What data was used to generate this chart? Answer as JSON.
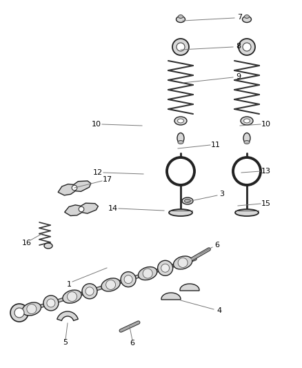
{
  "bg_color": "#ffffff",
  "fig_width": 4.38,
  "fig_height": 5.33,
  "dpi": 100,
  "line_color": "#777777",
  "label_color": "#000000",
  "label_fontsize": 8,
  "callouts": [
    [
      "1",
      155,
      388,
      105,
      408,
      100,
      412
    ],
    [
      "3",
      272,
      292,
      315,
      283,
      322,
      281
    ],
    [
      "4",
      262,
      435,
      310,
      448,
      318,
      450
    ],
    [
      "5",
      98,
      468,
      95,
      492,
      95,
      496
    ],
    [
      "6",
      188,
      473,
      192,
      493,
      192,
      497
    ],
    [
      "6",
      290,
      368,
      308,
      358,
      315,
      355
    ],
    [
      "7",
      265,
      30,
      340,
      26,
      348,
      25
    ],
    [
      "8",
      262,
      72,
      338,
      68,
      346,
      67
    ],
    [
      "9",
      265,
      120,
      338,
      112,
      346,
      111
    ],
    [
      "10",
      206,
      182,
      148,
      180,
      140,
      180
    ],
    [
      "10",
      348,
      182,
      378,
      180,
      386,
      180
    ],
    [
      "11",
      258,
      215,
      305,
      210,
      313,
      210
    ],
    [
      "12",
      208,
      252,
      150,
      250,
      142,
      250
    ],
    [
      "13",
      350,
      250,
      378,
      248,
      386,
      248
    ],
    [
      "14",
      238,
      305,
      172,
      302,
      164,
      302
    ],
    [
      "15",
      345,
      298,
      378,
      295,
      386,
      295
    ],
    [
      "16",
      62,
      338,
      44,
      348,
      39,
      352
    ],
    [
      "17",
      108,
      272,
      148,
      262,
      156,
      260
    ]
  ]
}
